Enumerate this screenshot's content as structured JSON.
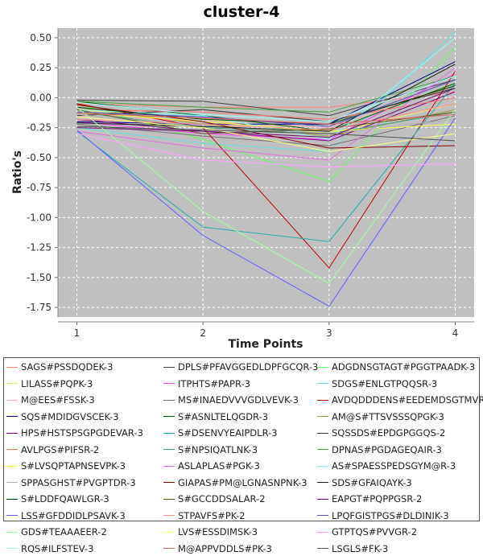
{
  "chart_data": {
    "type": "line",
    "title": "cluster-4",
    "xlabel": "Time Points",
    "ylabel": "Ratio's",
    "x": [
      1,
      2,
      3,
      4
    ],
    "x_ticks": [
      "1",
      "2",
      "3",
      "4"
    ],
    "xlim": [
      0.85,
      4.15
    ],
    "ylim": [
      -1.83,
      0.58
    ],
    "y_ticks": [
      "0.50",
      "0.25",
      "0.00",
      "-0.25",
      "-0.50",
      "-0.75",
      "-1.00",
      "-1.25",
      "-1.50",
      "-1.75"
    ],
    "y_tick_values": [
      0.5,
      0.25,
      0.0,
      -0.25,
      -0.5,
      -0.75,
      -1.0,
      -1.25,
      -1.5,
      -1.75
    ],
    "grid": true,
    "legend_position": "bottom",
    "background": "#c0c0c0",
    "series": [
      {
        "name": "SAGS#PSSDQDEK-3",
        "color": "#ff8080",
        "values": [
          -0.05,
          -0.08,
          -0.08,
          0.05
        ]
      },
      {
        "name": "DPLS#PFAVGGEDLDPFGCQR-3",
        "color": "#404040",
        "values": [
          -0.02,
          -0.03,
          -0.15,
          0.15
        ]
      },
      {
        "name": "ADGDNSGTAGT#PGGTPAADK-3",
        "color": "#60ff60",
        "values": [
          -0.05,
          -0.35,
          -0.7,
          0.42
        ]
      },
      {
        "name": "LILASS#PQPK-3",
        "color": "#f0f060",
        "values": [
          -0.1,
          -0.18,
          -0.3,
          -0.05
        ]
      },
      {
        "name": "ITPHTS#PAPR-3",
        "color": "#ff40ff",
        "values": [
          -0.2,
          -0.3,
          -0.35,
          0.2
        ]
      },
      {
        "name": "SDGS#ENLGTPQQSR-3",
        "color": "#60e0e0",
        "values": [
          -0.25,
          -0.38,
          -0.45,
          0.55
        ]
      },
      {
        "name": "M@EES#FSSK-3",
        "color": "#ffb0b0",
        "values": [
          -0.15,
          -0.2,
          -0.25,
          0.1
        ]
      },
      {
        "name": "MS#INAEDVVVGDLVEVK-3",
        "color": "#707070",
        "values": [
          -0.22,
          -0.32,
          -0.4,
          -0.15
        ]
      },
      {
        "name": "AVDQDDDENS#EEDEMDSGTMVR-3",
        "color": "#c00000",
        "values": [
          -0.05,
          -0.25,
          -1.42,
          0.22
        ]
      },
      {
        "name": "SQS#MDIDGVSCEK-3",
        "color": "#000080",
        "values": [
          -0.2,
          -0.22,
          -0.22,
          0.3
        ]
      },
      {
        "name": "S#ASNLTELQGDR-3",
        "color": "#006000",
        "values": [
          -0.03,
          -0.15,
          -0.28,
          0.12
        ]
      },
      {
        "name": "AM@S#TTSVSSSQPGK-3",
        "color": "#a0a040",
        "values": [
          -0.08,
          -0.22,
          -0.32,
          -0.1
        ]
      },
      {
        "name": "HPS#HSTSPSGPGDEVAR-3",
        "color": "#800080",
        "values": [
          -0.18,
          -0.28,
          -0.36,
          0.05
        ]
      },
      {
        "name": "S#DSENVYEAIPDLR-3",
        "color": "#20b0b0",
        "values": [
          -0.28,
          -1.08,
          -1.2,
          0.12
        ]
      },
      {
        "name": "SQSSDS#EPDGPGGQS-2",
        "color": "#303030",
        "values": [
          -0.15,
          -0.1,
          -0.2,
          0.08
        ]
      },
      {
        "name": "AVLPGS#PIFSR-2",
        "color": "#ff7070",
        "values": [
          -0.1,
          -0.12,
          -0.18,
          0.0
        ]
      },
      {
        "name": "S#NPSIQATLNK-3",
        "color": "#40a080",
        "values": [
          -0.12,
          -0.25,
          -0.3,
          -0.12
        ]
      },
      {
        "name": "DPNAS#PGDAGEQAIR-3",
        "color": "#40a040",
        "values": [
          -0.03,
          -0.08,
          -0.12,
          0.18
        ]
      },
      {
        "name": "S#LVSQPTAPNSEVPK-3",
        "color": "#ffff40",
        "values": [
          -0.12,
          -0.2,
          -0.28,
          -0.22
        ]
      },
      {
        "name": "ASLAPLAS#PGK-3",
        "color": "#e070e0",
        "values": [
          -0.28,
          -0.42,
          -0.52,
          0.25
        ]
      },
      {
        "name": "AS#SPAESSPEDSGYM@R-3",
        "color": "#80ffff",
        "values": [
          -0.1,
          -0.15,
          -0.35,
          0.5
        ]
      },
      {
        "name": "SPPASGHST#PVGPTDR-3",
        "color": "#b0b0b0",
        "values": [
          -0.14,
          -0.24,
          -0.3,
          -0.18
        ]
      },
      {
        "name": "GIAPAS#PM@LGNASNPNK-3",
        "color": "#800000",
        "values": [
          -0.06,
          -0.2,
          -0.42,
          -0.4
        ]
      },
      {
        "name": "SDS#GFAIQAYK-3",
        "color": "#1a1a1a",
        "values": [
          -0.21,
          -0.24,
          -0.28,
          0.28
        ]
      },
      {
        "name": "S#LDDFQAWLGR-3",
        "color": "#004000",
        "values": [
          -0.08,
          -0.18,
          -0.22,
          0.1
        ]
      },
      {
        "name": "S#GCCDDSALAR-2",
        "color": "#606020",
        "values": [
          -0.1,
          -0.3,
          -0.26,
          -0.12
        ]
      },
      {
        "name": "EAPGT#PQPPGSR-2",
        "color": "#701070",
        "values": [
          -0.25,
          -0.28,
          -0.33,
          0.08
        ]
      },
      {
        "name": "LSS#GFDDIDLPSAVK-3",
        "color": "#6060ff",
        "values": [
          -0.27,
          -1.15,
          -1.74,
          -0.17
        ]
      },
      {
        "name": "STPAVFS#PK-2",
        "color": "#ff9090",
        "values": [
          -0.18,
          -0.22,
          -0.27,
          -0.05
        ]
      },
      {
        "name": "LPQFGISTPGS#DLDINIK-3",
        "color": "#5050c0",
        "values": [
          -0.12,
          -0.16,
          -0.24,
          0.15
        ]
      },
      {
        "name": "GDS#TEAAAEER-2",
        "color": "#a0ffa0",
        "values": [
          -0.08,
          -0.95,
          -1.55,
          -0.1
        ]
      },
      {
        "name": "LVS#ESSDIMSK-3",
        "color": "#ffff80",
        "values": [
          -0.16,
          -0.25,
          -0.45,
          -0.3
        ]
      },
      {
        "name": "GTPTQS#PVVGR-2",
        "color": "#ffa0ff",
        "values": [
          -0.3,
          -0.52,
          -0.58,
          -0.55
        ]
      },
      {
        "name": "RQS#ILFSTEV-3",
        "color": "#a0ffff",
        "values": [
          -0.04,
          -0.14,
          -0.2,
          0.18
        ]
      },
      {
        "name": "M@APPVDDLS#PK-3",
        "color": "#e06060",
        "values": [
          -0.13,
          -0.17,
          -0.22,
          -0.14
        ]
      },
      {
        "name": "LSGLS#FK-3",
        "color": "#505050",
        "values": [
          -0.24,
          -0.27,
          -0.3,
          -0.36
        ]
      }
    ]
  }
}
